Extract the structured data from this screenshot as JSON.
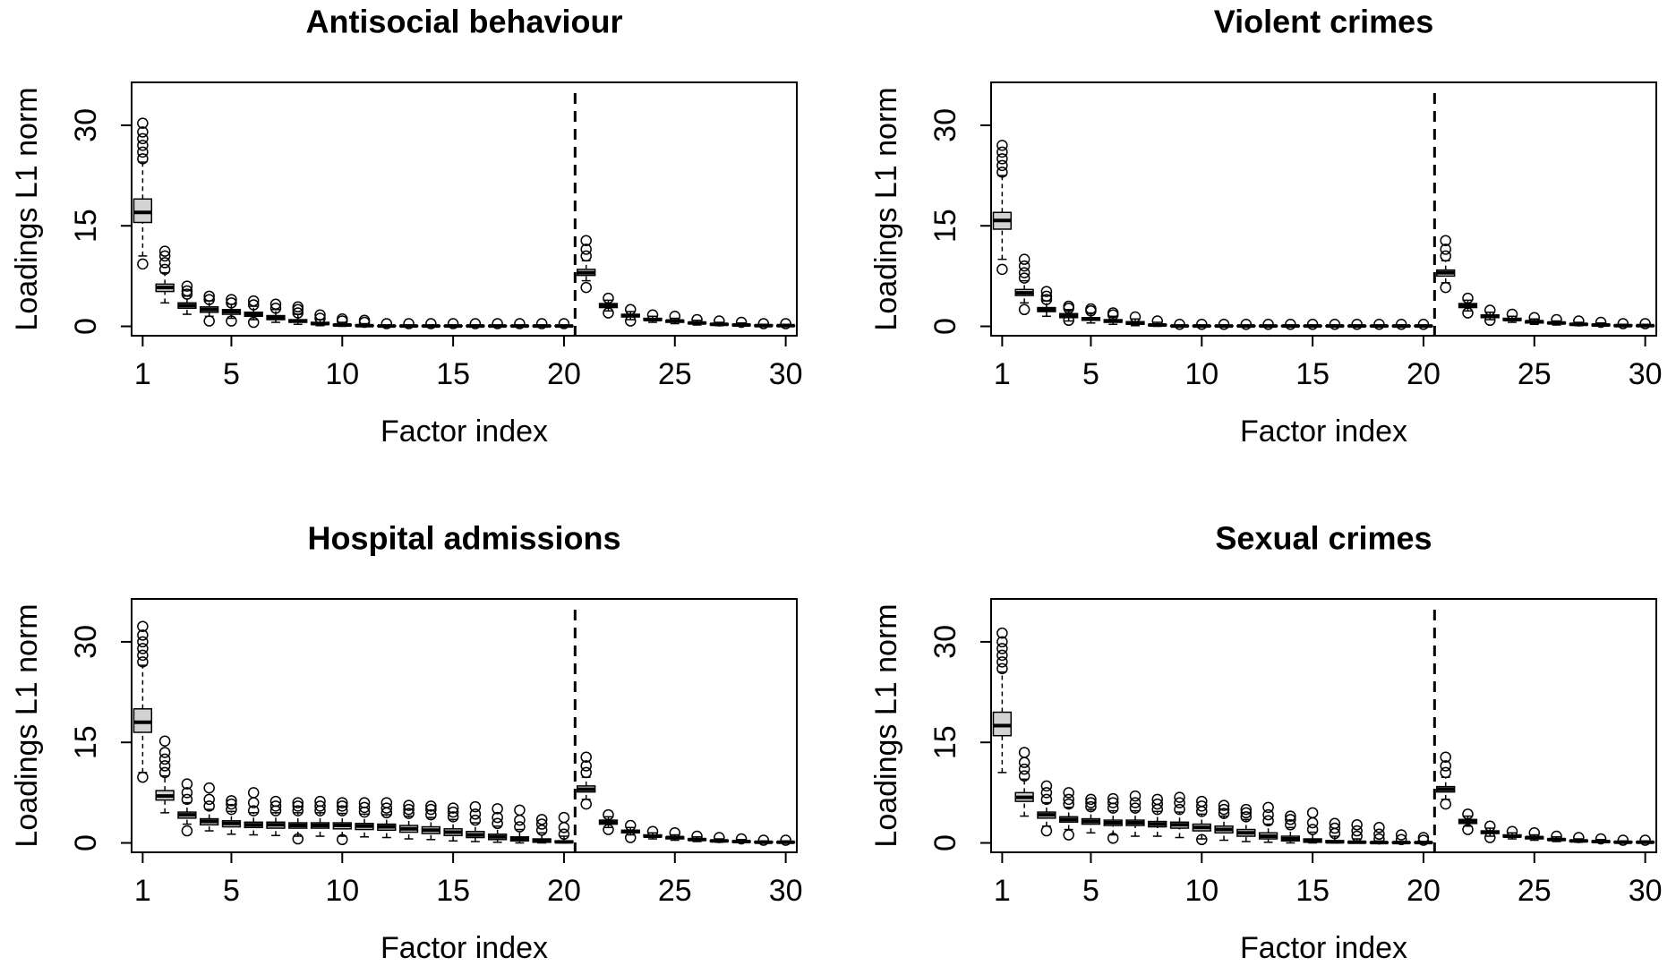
{
  "chart_data": [
    {
      "type": "boxplot",
      "title": "Antisocial behaviour",
      "xlabel": "Factor index",
      "ylabel": "Loadings L1 norm",
      "xlim": [
        0.5,
        30.5
      ],
      "ylim": [
        -1.4,
        36.4
      ],
      "xticks": [
        1,
        5,
        10,
        15,
        20,
        25,
        30
      ],
      "yticks": [
        0,
        15,
        30
      ],
      "color": "#d3d3d3",
      "vline": 20.5,
      "boxes": [
        [
          10.5,
          15.5,
          17,
          19,
          24.5
        ],
        [
          3.5,
          5.2,
          5.8,
          6.3,
          8
        ],
        [
          1.8,
          2.7,
          3.1,
          3.5,
          4.5
        ],
        [
          1.5,
          2.1,
          2.5,
          2.9,
          3.8
        ],
        [
          1.2,
          1.8,
          2.2,
          2.5,
          3.3
        ],
        [
          1,
          1.5,
          1.8,
          2.1,
          3
        ],
        [
          0.6,
          1,
          1.3,
          1.6,
          2.5
        ],
        [
          0.3,
          0.6,
          0.8,
          1,
          1.8
        ],
        [
          0.1,
          0.3,
          0.4,
          0.6,
          1
        ],
        [
          0,
          0.1,
          0.2,
          0.3,
          0.6
        ],
        [
          0,
          0.05,
          0.1,
          0.2,
          0.4
        ],
        [
          0,
          0,
          0.05,
          0.1,
          0.2
        ],
        [
          0,
          0,
          0.05,
          0.1,
          0.2
        ],
        [
          0,
          0,
          0.05,
          0.1,
          0.2
        ],
        [
          0,
          0,
          0.05,
          0.1,
          0.2
        ],
        [
          0,
          0,
          0.05,
          0.1,
          0.2
        ],
        [
          0,
          0,
          0.05,
          0.1,
          0.2
        ],
        [
          0,
          0,
          0.05,
          0.1,
          0.2
        ],
        [
          0,
          0,
          0.05,
          0.1,
          0.2
        ],
        [
          0,
          0,
          0.05,
          0.1,
          0.2
        ],
        [
          6.8,
          7.6,
          8,
          8.5,
          9.8
        ],
        [
          2.3,
          2.8,
          3.1,
          3.4,
          3.9
        ],
        [
          1,
          1.4,
          1.6,
          1.8,
          2.2
        ],
        [
          0.6,
          0.9,
          1,
          1.2,
          1.5
        ],
        [
          0.4,
          0.6,
          0.8,
          0.9,
          1.2
        ],
        [
          0.2,
          0.4,
          0.5,
          0.6,
          0.9
        ],
        [
          0.1,
          0.2,
          0.3,
          0.4,
          0.6
        ],
        [
          0.05,
          0.1,
          0.2,
          0.3,
          0.5
        ],
        [
          0,
          0.05,
          0.1,
          0.2,
          0.3
        ],
        [
          0,
          0.05,
          0.1,
          0.15,
          0.3
        ]
      ],
      "fliers": [
        [
          9.3,
          25,
          26,
          27,
          28,
          29,
          30.3
        ],
        [
          8.5,
          9.5,
          10.5,
          11.2
        ],
        [
          4.8,
          5.3,
          6
        ],
        [
          0.8,
          4,
          4.5
        ],
        [
          0.8,
          3.5,
          4
        ],
        [
          0.6,
          3.2,
          3.8
        ],
        [
          2.7,
          3.3
        ],
        [
          2,
          2.5,
          2.9
        ],
        [
          1.2,
          1.7
        ],
        [
          0.8,
          1.1
        ],
        [
          0.6,
          0.9
        ],
        [
          0.4
        ],
        [
          0.4
        ],
        [
          0.4
        ],
        [
          0.4
        ],
        [
          0.4
        ],
        [
          0.4
        ],
        [
          0.4
        ],
        [
          0.4
        ],
        [
          0.4
        ],
        [
          5.8,
          10.5,
          11.5,
          12.8
        ],
        [
          2,
          4.2
        ],
        [
          0.8,
          2.5
        ],
        [
          1.7
        ],
        [
          1.5
        ],
        [
          1
        ],
        [
          0.8
        ],
        [
          0.6
        ],
        [
          0.4
        ],
        [
          0.4
        ]
      ]
    },
    {
      "type": "boxplot",
      "title": "Violent crimes",
      "xlabel": "Factor index",
      "ylabel": "Loadings L1 norm",
      "xlim": [
        0.5,
        30.5
      ],
      "ylim": [
        -1.4,
        36.4
      ],
      "xticks": [
        1,
        5,
        10,
        15,
        20,
        25,
        30
      ],
      "yticks": [
        0,
        15,
        30
      ],
      "color": "#d3d3d3",
      "vline": 20.5,
      "boxes": [
        [
          10,
          14.5,
          15.8,
          17,
          22.5
        ],
        [
          3.5,
          4.6,
          5,
          5.5,
          6.8
        ],
        [
          1.5,
          2.2,
          2.5,
          2.8,
          3.8
        ],
        [
          0.8,
          1.3,
          1.6,
          1.9,
          2.5
        ],
        [
          0.5,
          0.9,
          1.1,
          1.3,
          2
        ],
        [
          0.3,
          0.6,
          0.8,
          1,
          1.5
        ],
        [
          0.1,
          0.3,
          0.5,
          0.7,
          1.1
        ],
        [
          0,
          0.1,
          0.2,
          0.3,
          0.6
        ],
        [
          0,
          0,
          0.05,
          0.1,
          0.2
        ],
        [
          0,
          0,
          0.05,
          0.1,
          0.2
        ],
        [
          0,
          0,
          0.05,
          0.1,
          0.2
        ],
        [
          0,
          0,
          0.05,
          0.1,
          0.2
        ],
        [
          0,
          0,
          0.05,
          0.1,
          0.2
        ],
        [
          0,
          0,
          0.05,
          0.1,
          0.2
        ],
        [
          0,
          0,
          0.05,
          0.1,
          0.2
        ],
        [
          0,
          0,
          0.05,
          0.1,
          0.2
        ],
        [
          0,
          0,
          0.05,
          0.1,
          0.2
        ],
        [
          0,
          0,
          0.05,
          0.1,
          0.2
        ],
        [
          0,
          0,
          0.05,
          0.1,
          0.2
        ],
        [
          0,
          0,
          0.05,
          0.1,
          0.2
        ],
        [
          6.5,
          7.5,
          8,
          8.4,
          9.8
        ],
        [
          2.3,
          2.8,
          3.1,
          3.4,
          3.9
        ],
        [
          1,
          1.3,
          1.5,
          1.7,
          2.1
        ],
        [
          0.6,
          0.9,
          1,
          1.2,
          1.5
        ],
        [
          0.3,
          0.5,
          0.7,
          0.8,
          1.1
        ],
        [
          0.2,
          0.4,
          0.5,
          0.6,
          0.8
        ],
        [
          0.1,
          0.2,
          0.3,
          0.4,
          0.6
        ],
        [
          0.05,
          0.1,
          0.2,
          0.3,
          0.5
        ],
        [
          0,
          0.05,
          0.1,
          0.2,
          0.3
        ],
        [
          0,
          0.05,
          0.1,
          0.15,
          0.3
        ]
      ],
      "fliers": [
        [
          8.5,
          23,
          24,
          25,
          26,
          27
        ],
        [
          2.5,
          7.2,
          8,
          9,
          10
        ],
        [
          4,
          4.5,
          5.2
        ],
        [
          0.9,
          2.7,
          3
        ],
        [
          2.3,
          2.6
        ],
        [
          1.7,
          2
        ],
        [
          1.4
        ],
        [
          0.8
        ],
        [
          0.3
        ],
        [
          0.3
        ],
        [
          0.3
        ],
        [
          0.3
        ],
        [
          0.3
        ],
        [
          0.3
        ],
        [
          0.3
        ],
        [
          0.3
        ],
        [
          0.3
        ],
        [
          0.3
        ],
        [
          0.3
        ],
        [
          0.3
        ],
        [
          5.8,
          10.5,
          11.5,
          12.8
        ],
        [
          2,
          4.2
        ],
        [
          0.9,
          2.4
        ],
        [
          1.8
        ],
        [
          1.3
        ],
        [
          1
        ],
        [
          0.8
        ],
        [
          0.6
        ],
        [
          0.4
        ],
        [
          0.4
        ]
      ]
    },
    {
      "type": "boxplot",
      "title": "Hospital admissions",
      "xlabel": "Factor index",
      "ylabel": "Loadings L1 norm",
      "xlim": [
        0.5,
        30.5
      ],
      "ylim": [
        -1.4,
        36.4
      ],
      "xticks": [
        1,
        5,
        10,
        15,
        20,
        25,
        30
      ],
      "yticks": [
        0,
        15,
        30
      ],
      "color": "#d3d3d3",
      "vline": 20.5,
      "boxes": [
        [
          10.5,
          16.5,
          18,
          20,
          26.5
        ],
        [
          4.5,
          6.4,
          7,
          7.8,
          10
        ],
        [
          2.8,
          3.7,
          4.2,
          4.6,
          6
        ],
        [
          1.8,
          2.7,
          3.2,
          3.6,
          5
        ],
        [
          1.3,
          2.4,
          2.9,
          3.3,
          4.7
        ],
        [
          1.2,
          2.3,
          2.7,
          3.1,
          4.5
        ],
        [
          1.1,
          2.2,
          2.7,
          3.1,
          4.5
        ],
        [
          1,
          2.2,
          2.6,
          3,
          4.5
        ],
        [
          1,
          2.2,
          2.6,
          3,
          4.5
        ],
        [
          1,
          2.1,
          2.6,
          3,
          4.4
        ],
        [
          0.9,
          2,
          2.5,
          2.9,
          4.3
        ],
        [
          0.8,
          1.9,
          2.4,
          2.8,
          4.2
        ],
        [
          0.6,
          1.6,
          2.1,
          2.6,
          4
        ],
        [
          0.5,
          1.4,
          1.9,
          2.4,
          3.8
        ],
        [
          0.3,
          1.1,
          1.6,
          2.1,
          3.5
        ],
        [
          0.2,
          0.8,
          1.2,
          1.7,
          3
        ],
        [
          0.1,
          0.5,
          0.9,
          1.3,
          2.5
        ],
        [
          0,
          0.3,
          0.6,
          0.9,
          2
        ],
        [
          0,
          0.1,
          0.3,
          0.6,
          1.5
        ],
        [
          0,
          0.05,
          0.15,
          0.3,
          1
        ],
        [
          6.5,
          7.6,
          8,
          8.5,
          9.8
        ],
        [
          2.3,
          2.8,
          3.1,
          3.4,
          3.9
        ],
        [
          1.2,
          1.5,
          1.7,
          1.9,
          2.3
        ],
        [
          0.6,
          0.9,
          1,
          1.2,
          1.5
        ],
        [
          0.4,
          0.6,
          0.8,
          0.9,
          1.2
        ],
        [
          0.2,
          0.4,
          0.5,
          0.6,
          0.9
        ],
        [
          0.1,
          0.2,
          0.3,
          0.4,
          0.6
        ],
        [
          0.05,
          0.1,
          0.2,
          0.3,
          0.5
        ],
        [
          0,
          0.05,
          0.1,
          0.2,
          0.3
        ],
        [
          0,
          0.05,
          0.1,
          0.15,
          0.3
        ]
      ],
      "fliers": [
        [
          9.8,
          27,
          28,
          29,
          30,
          31,
          32.3
        ],
        [
          10.5,
          11.5,
          12.5,
          13.5,
          15.2
        ],
        [
          1.8,
          6.5,
          7.5,
          8.8
        ],
        [
          5.5,
          6.5,
          8.2
        ],
        [
          5,
          5.8,
          6.3
        ],
        [
          4.8,
          6,
          7.5
        ],
        [
          4.8,
          5.5,
          6.2
        ],
        [
          0.6,
          4.8,
          5.5,
          6
        ],
        [
          4.8,
          5.5,
          6.2
        ],
        [
          0.5,
          4.8,
          5.5,
          6
        ],
        [
          4.6,
          5.3,
          6
        ],
        [
          4.5,
          5.2,
          6
        ],
        [
          4.4,
          5,
          5.6
        ],
        [
          4.2,
          5,
          5.5
        ],
        [
          3.9,
          4.6,
          5.2
        ],
        [
          3.4,
          4.3,
          5.4
        ],
        [
          2.9,
          3.8,
          5.1
        ],
        [
          2.4,
          3.4,
          4.9
        ],
        [
          1.9,
          2.8,
          3.5
        ],
        [
          1.3,
          2.3,
          3.8
        ],
        [
          5.8,
          10.5,
          11.5,
          12.8
        ],
        [
          2,
          4.2
        ],
        [
          0.8,
          2.6
        ],
        [
          1.7
        ],
        [
          1.5
        ],
        [
          1
        ],
        [
          0.8
        ],
        [
          0.6
        ],
        [
          0.4
        ],
        [
          0.4
        ]
      ]
    },
    {
      "type": "boxplot",
      "title": "Sexual crimes",
      "xlabel": "Factor index",
      "ylabel": "Loadings L1 norm",
      "xlim": [
        0.5,
        30.5
      ],
      "ylim": [
        -1.4,
        36.4
      ],
      "xticks": [
        1,
        5,
        10,
        15,
        20,
        25,
        30
      ],
      "yticks": [
        0,
        15,
        30
      ],
      "color": "#d3d3d3",
      "vline": 20.5,
      "boxes": [
        [
          10.5,
          16,
          17.5,
          19.5,
          25.5
        ],
        [
          4,
          6.2,
          6.8,
          7.5,
          9.5
        ],
        [
          2.5,
          3.7,
          4.2,
          4.6,
          6
        ],
        [
          2,
          3.1,
          3.5,
          3.9,
          5.3
        ],
        [
          1.5,
          2.8,
          3.2,
          3.6,
          5
        ],
        [
          1.2,
          2.6,
          3,
          3.4,
          4.8
        ],
        [
          1,
          2.6,
          3,
          3.4,
          4.8
        ],
        [
          1,
          2.4,
          2.8,
          3.2,
          4.7
        ],
        [
          0.8,
          2.2,
          2.7,
          3.1,
          4.6
        ],
        [
          0.6,
          1.8,
          2.3,
          2.8,
          4.3
        ],
        [
          0.4,
          1.5,
          2,
          2.5,
          4
        ],
        [
          0.2,
          1,
          1.5,
          2,
          3.5
        ],
        [
          0.1,
          0.6,
          1,
          1.5,
          2.8
        ],
        [
          0,
          0.3,
          0.6,
          1,
          2.3
        ],
        [
          0,
          0.1,
          0.3,
          0.6,
          1.6
        ],
        [
          0,
          0.05,
          0.15,
          0.35,
          1
        ],
        [
          0,
          0,
          0.1,
          0.2,
          0.6
        ],
        [
          0,
          0,
          0.05,
          0.1,
          0.3
        ],
        [
          0,
          0,
          0.05,
          0.1,
          0.2
        ],
        [
          0,
          0,
          0.05,
          0.1,
          0.2
        ],
        [
          6.5,
          7.6,
          8,
          8.4,
          9.8
        ],
        [
          2.5,
          2.9,
          3.2,
          3.5,
          4
        ],
        [
          1,
          1.4,
          1.6,
          1.8,
          2.2
        ],
        [
          0.6,
          0.9,
          1,
          1.2,
          1.5
        ],
        [
          0.4,
          0.6,
          0.8,
          0.9,
          1.2
        ],
        [
          0.2,
          0.4,
          0.5,
          0.6,
          0.9
        ],
        [
          0.1,
          0.2,
          0.3,
          0.4,
          0.6
        ],
        [
          0.05,
          0.1,
          0.2,
          0.3,
          0.5
        ],
        [
          0,
          0.05,
          0.1,
          0.2,
          0.3
        ],
        [
          0,
          0.05,
          0.1,
          0.15,
          0.3
        ]
      ],
      "fliers": [
        [
          26,
          27,
          28,
          29,
          30,
          31.3
        ],
        [
          10,
          11,
          12,
          13.5
        ],
        [
          1.8,
          6.5,
          7.5,
          8.5
        ],
        [
          1.2,
          5.8,
          6.5,
          7.5
        ],
        [
          5.4,
          6,
          6.5
        ],
        [
          0.7,
          5.2,
          6,
          6.6
        ],
        [
          5.2,
          6,
          7
        ],
        [
          5,
          5.8,
          6.5
        ],
        [
          5,
          6,
          6.8
        ],
        [
          0.5,
          4.7,
          5.5,
          6.2
        ],
        [
          4.4,
          5,
          5.6
        ],
        [
          3.9,
          4.5,
          5
        ],
        [
          3.3,
          4.2,
          5.3
        ],
        [
          2.7,
          3.5,
          4
        ],
        [
          2,
          3,
          4.5
        ],
        [
          1.4,
          2.2,
          2.9
        ],
        [
          1,
          1.8,
          2.7
        ],
        [
          0.6,
          1.3,
          2.3
        ],
        [
          0.5,
          1.2
        ],
        [
          0.4,
          0.8
        ],
        [
          5.8,
          10.5,
          11.5,
          12.8
        ],
        [
          2,
          4.3
        ],
        [
          0.8,
          2.5
        ],
        [
          1.7
        ],
        [
          1.5
        ],
        [
          1
        ],
        [
          0.8
        ],
        [
          0.6
        ],
        [
          0.4
        ],
        [
          0.4
        ]
      ]
    }
  ]
}
